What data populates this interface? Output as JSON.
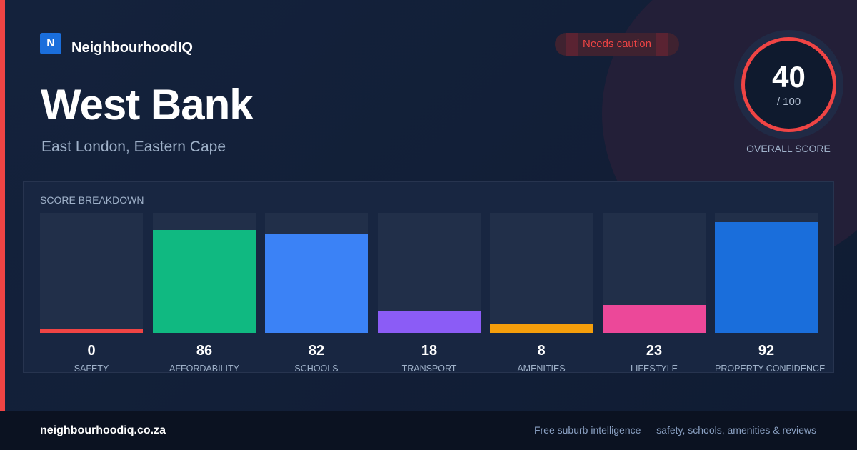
{
  "brand": {
    "icon_letter": "N",
    "name": "NeighbourhoodIQ"
  },
  "suburb": {
    "name": "West Bank",
    "location": "East London, Eastern Cape"
  },
  "status_badge": "Needs caution",
  "overall": {
    "score": "40",
    "max": "/ 100",
    "label": "OVERALL SCORE"
  },
  "breakdown": {
    "title": "SCORE BREAKDOWN",
    "categories": [
      {
        "label": "SAFETY",
        "value": 0,
        "color": "#ef4444"
      },
      {
        "label": "AFFORDABILITY",
        "value": 86,
        "color": "#10b981"
      },
      {
        "label": "SCHOOLS",
        "value": 82,
        "color": "#3b82f6"
      },
      {
        "label": "TRANSPORT",
        "value": 18,
        "color": "#8b5cf6"
      },
      {
        "label": "AMENITIES",
        "value": 8,
        "color": "#f59e0b"
      },
      {
        "label": "LIFESTYLE",
        "value": 23,
        "color": "#ec4899"
      },
      {
        "label": "PROPERTY CONFIDENCE",
        "value": 92,
        "color": "#1a6edb"
      }
    ]
  },
  "footer": {
    "site": "neighbourhoodiq.co.za",
    "tagline": "Free suburb intelligence — safety, schools, amenities & reviews"
  }
}
